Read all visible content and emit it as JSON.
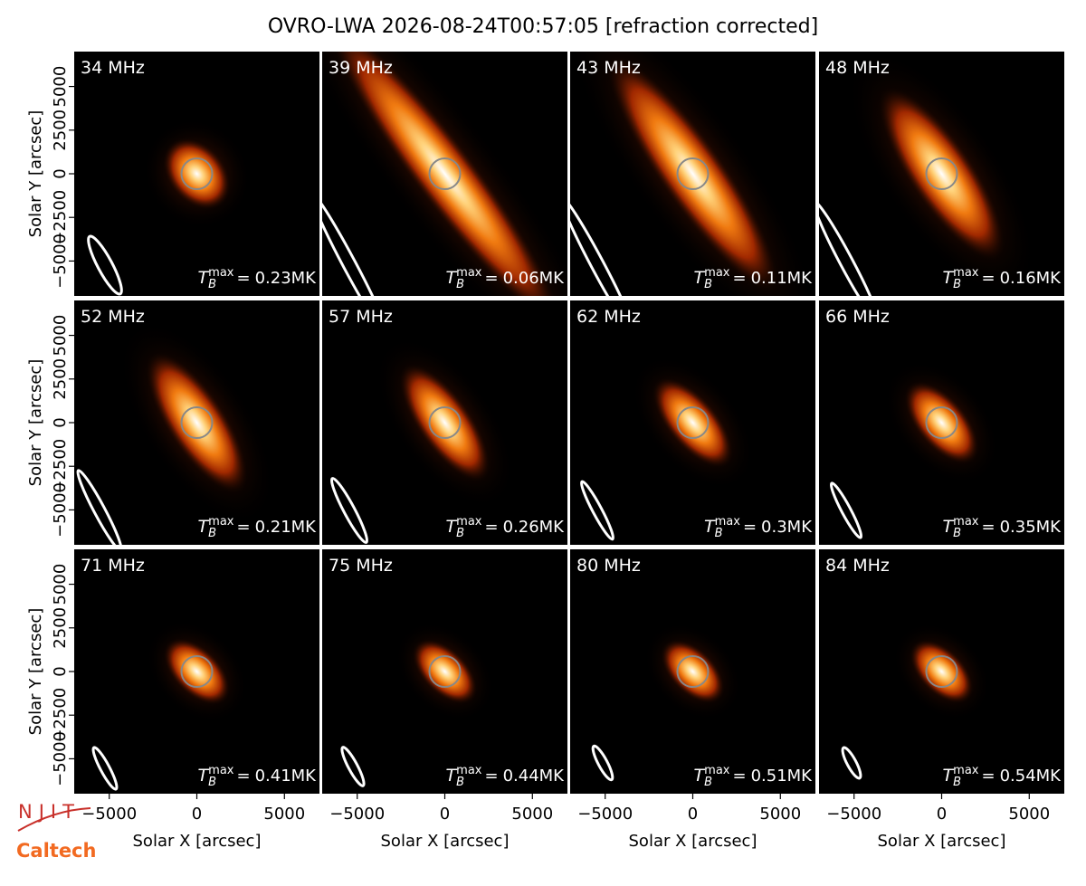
{
  "chart_data": {
    "type": "image-grid",
    "title": "OVRO-LWA 2026-08-24T00:57:05 [refraction corrected]",
    "xlabel": "Solar X [arcsec]",
    "ylabel": "Solar Y [arcsec]",
    "xlim": [
      -7000,
      7000
    ],
    "ylim": [
      -7000,
      7000
    ],
    "xticks": [
      {
        "value": -5000,
        "label": "−5000"
      },
      0,
      5000
    ],
    "yticks": [
      {
        "value": -5000,
        "label": "−5000"
      },
      {
        "value": -2500,
        "label": "−2500"
      },
      0,
      2500,
      5000
    ],
    "categories": [
      "34 MHz",
      "39 MHz",
      "43 MHz",
      "48 MHz",
      "52 MHz",
      "57 MHz",
      "62 MHz",
      "66 MHz",
      "71 MHz",
      "75 MHz",
      "80 MHz",
      "84 MHz"
    ],
    "values": [
      0.23,
      0.06,
      0.11,
      0.16,
      0.21,
      0.26,
      0.3,
      0.35,
      0.41,
      0.44,
      0.51,
      0.54
    ],
    "value_labels": [
      "0.23MK",
      "0.06MK",
      "0.11MK",
      "0.16MK",
      "0.21MK",
      "0.26MK",
      "0.3MK",
      "0.35MK",
      "0.41MK",
      "0.44MK",
      "0.51MK",
      "0.54MK"
    ],
    "annotation": {
      "symbol": "T",
      "sub": "B",
      "sup": "max",
      "relation": "="
    },
    "logos": [
      "NJIT",
      "Caltech"
    ]
  }
}
